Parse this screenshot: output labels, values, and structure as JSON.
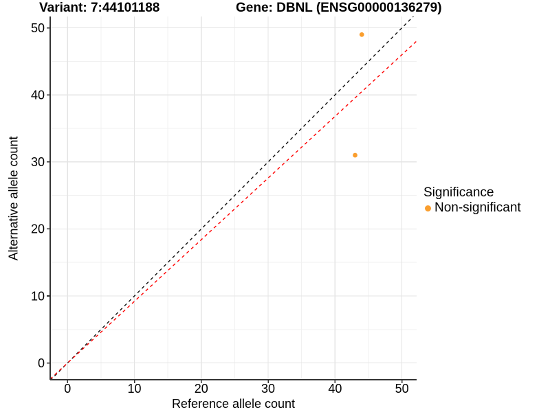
{
  "chart_data": {
    "type": "scatter",
    "title_left": "Variant: 7:44101188",
    "title_right": "Gene: DBNL (ENSG00000136279)",
    "xlabel": "Reference allele count",
    "ylabel": "Alternative allele count",
    "xlim": [
      -2.6,
      52.2
    ],
    "ylim": [
      -2.5,
      51.7
    ],
    "x_ticks": [
      0,
      10,
      20,
      30,
      40,
      50
    ],
    "y_ticks": [
      0,
      10,
      20,
      30,
      40,
      50
    ],
    "x_minor_ticks": [
      5,
      15,
      25,
      35,
      45
    ],
    "y_minor_ticks": [
      5,
      15,
      25,
      35,
      45
    ],
    "grid": {
      "major_color": "#E4E4E4",
      "minor_color": "#F1F1F1",
      "visible": true
    },
    "axis_color": "#333333",
    "text_color": "#000000",
    "background_color": "#FFFFFF",
    "series": [
      {
        "name": "Non-significant",
        "color": "#FA9E2E",
        "point_radius": 3.4,
        "points": [
          {
            "x": 44,
            "y": 49
          },
          {
            "x": 43,
            "y": 31
          }
        ]
      }
    ],
    "reference_lines": [
      {
        "name": "identity-line",
        "slope": 1,
        "intercept": 0,
        "color": "#111111",
        "style": "dashed"
      },
      {
        "name": "bias-line",
        "slope": 0.92,
        "intercept": 0,
        "color": "#FF0000",
        "style": "dashed"
      }
    ],
    "legend": {
      "title": "Significance",
      "position": "right",
      "items": [
        {
          "label": "Non-significant",
          "color": "#FA9E2E"
        }
      ]
    }
  }
}
